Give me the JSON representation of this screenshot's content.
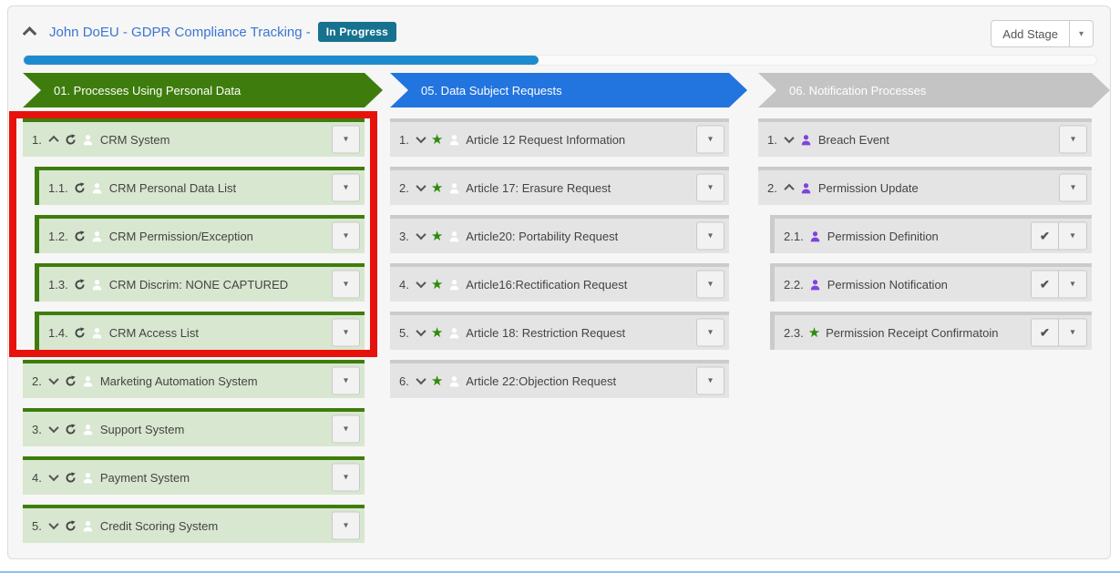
{
  "header": {
    "title": "John DoEU - GDPR Compliance Tracking -",
    "status_badge": "In Progress",
    "add_stage_label": "Add Stage",
    "progress_percent": 48
  },
  "colors": {
    "stage_green": "#3e7d0d",
    "stage_blue": "#2274df",
    "stage_gray": "#c4c4c4",
    "item_green_bg": "#d8e7cf",
    "item_gray_bg": "#e4e4e4",
    "badge_teal": "#17728f",
    "progress_blue": "#1e8bcd",
    "title_blue": "#3b76d2",
    "star_green": "#2e8b0b",
    "person_purple": "#7d44df",
    "highlight_red": "#e8120c"
  },
  "stages": [
    {
      "id": "stage-01",
      "label": "01. Processes Using Personal Data",
      "theme": "green",
      "item_theme": "green",
      "items": [
        {
          "num": "1.",
          "label": "CRM System",
          "icons": [
            "chevron-up-icon",
            "refresh-icon",
            "person-white-icon"
          ],
          "buttons": [
            "caret"
          ],
          "children": [
            {
              "num": "1.1.",
              "label": "CRM Personal Data List",
              "icons": [
                "refresh-icon",
                "person-white-icon"
              ],
              "buttons": [
                "caret"
              ]
            },
            {
              "num": "1.2.",
              "label": "CRM Permission/Exception",
              "icons": [
                "refresh-icon",
                "person-white-icon"
              ],
              "buttons": [
                "caret"
              ]
            },
            {
              "num": "1.3.",
              "label": "CRM Discrim: NONE CAPTURED",
              "icons": [
                "refresh-icon",
                "person-white-icon"
              ],
              "buttons": [
                "caret"
              ]
            },
            {
              "num": "1.4.",
              "label": "CRM Access List",
              "icons": [
                "refresh-icon",
                "person-white-icon"
              ],
              "buttons": [
                "caret"
              ]
            }
          ]
        },
        {
          "num": "2.",
          "label": "Marketing Automation System",
          "icons": [
            "chevron-down-icon",
            "refresh-icon",
            "person-white-icon"
          ],
          "buttons": [
            "caret"
          ]
        },
        {
          "num": "3.",
          "label": "Support System",
          "icons": [
            "chevron-down-icon",
            "refresh-icon",
            "person-white-icon"
          ],
          "buttons": [
            "caret"
          ]
        },
        {
          "num": "4.",
          "label": "Payment System",
          "icons": [
            "chevron-down-icon",
            "refresh-icon",
            "person-white-icon"
          ],
          "buttons": [
            "caret"
          ]
        },
        {
          "num": "5.",
          "label": "Credit Scoring System",
          "icons": [
            "chevron-down-icon",
            "refresh-icon",
            "person-white-icon"
          ],
          "buttons": [
            "caret"
          ]
        }
      ]
    },
    {
      "id": "stage-05",
      "label": "05. Data Subject Requests",
      "theme": "blue",
      "item_theme": "gray",
      "items": [
        {
          "num": "1.",
          "label": "Article 12 Request Information",
          "icons": [
            "chevron-down-icon",
            "star-icon",
            "person-white-icon"
          ],
          "buttons": [
            "caret"
          ]
        },
        {
          "num": "2.",
          "label": "Article 17: Erasure Request",
          "icons": [
            "chevron-down-icon",
            "star-icon",
            "person-white-icon"
          ],
          "buttons": [
            "caret"
          ]
        },
        {
          "num": "3.",
          "label": "Article20: Portability Request",
          "icons": [
            "chevron-down-icon",
            "star-icon",
            "person-white-icon"
          ],
          "buttons": [
            "caret"
          ]
        },
        {
          "num": "4.",
          "label": "Article16:Rectification Request",
          "icons": [
            "chevron-down-icon",
            "star-icon",
            "person-white-icon"
          ],
          "buttons": [
            "caret"
          ]
        },
        {
          "num": "5.",
          "label": "Article 18: Restriction Request",
          "icons": [
            "chevron-down-icon",
            "star-icon",
            "person-white-icon"
          ],
          "buttons": [
            "caret"
          ]
        },
        {
          "num": "6.",
          "label": "Article 22:Objection Request",
          "icons": [
            "chevron-down-icon",
            "star-icon",
            "person-white-icon"
          ],
          "buttons": [
            "caret"
          ]
        }
      ]
    },
    {
      "id": "stage-06",
      "label": "06. Notification Processes",
      "theme": "gray",
      "item_theme": "gray",
      "items": [
        {
          "num": "1.",
          "label": "Breach Event",
          "icons": [
            "chevron-down-icon",
            "person-purple-icon"
          ],
          "buttons": [
            "caret"
          ]
        },
        {
          "num": "2.",
          "label": "Permission Update",
          "icons": [
            "chevron-up-icon",
            "person-purple-icon"
          ],
          "buttons": [
            "caret"
          ],
          "children": [
            {
              "num": "2.1.",
              "label": "Permission Definition",
              "icons": [
                "person-purple-icon"
              ],
              "buttons": [
                "check",
                "caret"
              ]
            },
            {
              "num": "2.2.",
              "label": "Permission Notification",
              "icons": [
                "person-purple-icon"
              ],
              "buttons": [
                "check",
                "caret"
              ]
            },
            {
              "num": "2.3.",
              "label": "Permission Receipt Confirmatoin",
              "icons": [
                "star-icon"
              ],
              "buttons": [
                "check",
                "caret"
              ]
            }
          ]
        }
      ]
    }
  ],
  "highlight": {
    "target": "stage-01 item 1 and sub-items 1.1-1.4"
  }
}
